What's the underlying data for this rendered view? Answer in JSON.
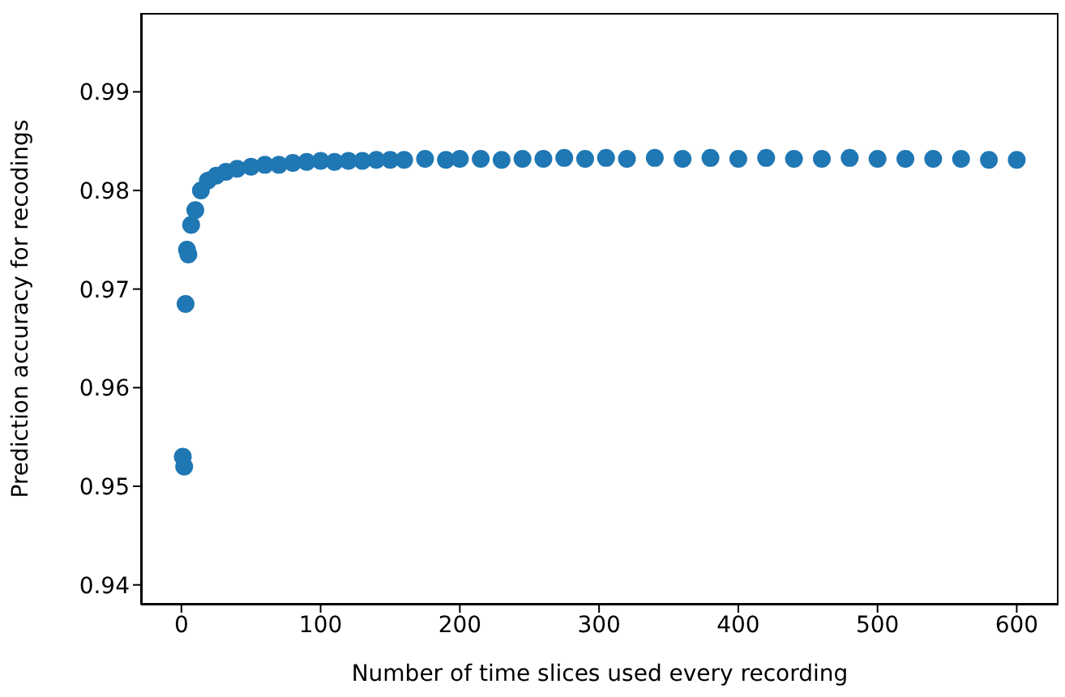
{
  "chart_data": {
    "type": "scatter",
    "xlabel": "Number of time slices used every recording",
    "ylabel": "Prediction accuracy for recodings",
    "x": [
      1,
      2,
      3,
      4,
      5,
      7,
      10,
      14,
      19,
      25,
      32,
      40,
      50,
      60,
      70,
      80,
      90,
      100,
      110,
      120,
      130,
      140,
      150,
      160,
      175,
      190,
      200,
      215,
      230,
      245,
      260,
      275,
      290,
      305,
      320,
      340,
      360,
      380,
      400,
      420,
      440,
      460,
      480,
      500,
      520,
      540,
      560,
      580,
      600
    ],
    "series": [
      {
        "color": "#1f77b4",
        "values": [
          0.953,
          0.952,
          0.9685,
          0.974,
          0.9735,
          0.9765,
          0.978,
          0.98,
          0.981,
          0.9815,
          0.9819,
          0.9822,
          0.9824,
          0.9826,
          0.9826,
          0.9828,
          0.9829,
          0.983,
          0.9829,
          0.983,
          0.983,
          0.9831,
          0.9831,
          0.9831,
          0.9832,
          0.9831,
          0.9832,
          0.9832,
          0.9831,
          0.9832,
          0.9832,
          0.9833,
          0.9832,
          0.9833,
          0.9832,
          0.9833,
          0.9832,
          0.9833,
          0.9832,
          0.9833,
          0.9832,
          0.9832,
          0.9833,
          0.9832,
          0.9832,
          0.9832,
          0.9832,
          0.9831,
          0.9831
        ]
      }
    ],
    "xlim": [
      -29,
      630
    ],
    "xticks": [
      0,
      100,
      200,
      300,
      400,
      500,
      600
    ],
    "ylim": [
      0.938,
      0.998
    ],
    "yticks": [
      0.94,
      0.95,
      0.96,
      0.97,
      0.98,
      0.99
    ],
    "grid": false,
    "legend": false,
    "marker": "circle"
  }
}
